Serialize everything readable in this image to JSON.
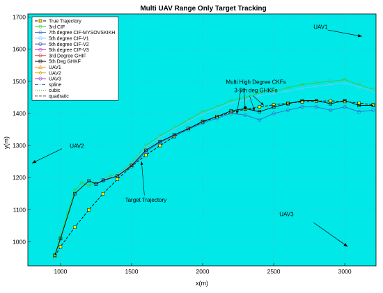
{
  "chart_data": {
    "type": "line",
    "title": "Multi UAV Range Only Target Tracking",
    "xlabel": "x(m)",
    "ylabel": "y(m)",
    "xlim": [
      770,
      3220
    ],
    "ylim": [
      925,
      1710
    ],
    "xticks": [
      1000,
      1500,
      2000,
      2500,
      3000
    ],
    "yticks": [
      1000,
      1100,
      1200,
      1300,
      1400,
      1500,
      1600,
      1700
    ],
    "grid": true,
    "background": "#00e8e8",
    "legend_position": "top-left",
    "legend": [
      {
        "name": "True Trajectory",
        "color": "#000000",
        "marker": "square-yellow",
        "line": "dash"
      },
      {
        "name": "3rd CIF",
        "color": "#33cc33",
        "marker": "circle",
        "line": "solid"
      },
      {
        "name": "7th degree CIF-MYSOVSKIKH",
        "color": "#3366cc",
        "marker": "circle",
        "line": "solid"
      },
      {
        "name": "5th degree CIF-V1",
        "color": "#66ccff",
        "marker": "circle",
        "line": "solid"
      },
      {
        "name": "5th degree CIF-V2",
        "color": "#3333aa",
        "marker": "circle",
        "line": "solid"
      },
      {
        "name": "5th degree CIF-V3",
        "color": "#cc33cc",
        "marker": "circle",
        "line": "solid"
      },
      {
        "name": "3rd Degree GHIF",
        "color": "#cc3333",
        "marker": "circle",
        "line": "solid"
      },
      {
        "name": "5th Deg GHKF",
        "color": "#000000",
        "marker": "square",
        "line": "solid"
      },
      {
        "name": "UAV1",
        "color": "#ff8800",
        "marker": "triangle",
        "line": "solid"
      },
      {
        "name": "UAV2",
        "color": "#ccaa00",
        "marker": "diamond",
        "line": "solid"
      },
      {
        "name": "UAV3",
        "color": "#9933cc",
        "marker": "circle",
        "line": "solid"
      },
      {
        "name": "spline",
        "color": "#0055cc",
        "marker": "none",
        "line": "dashdot"
      },
      {
        "name": "cubic",
        "color": "#008800",
        "marker": "none",
        "line": "dot"
      },
      {
        "name": "quadratic",
        "color": "#663344",
        "marker": "none",
        "line": "dash"
      }
    ],
    "series": [
      {
        "name": "True Trajectory",
        "x": [
          960,
          1000,
          1100,
          1200,
          1300,
          1400,
          1500,
          1600,
          1700,
          1800,
          1900,
          2000,
          2100,
          2200,
          2300,
          2400,
          2500,
          2600,
          2700,
          2800,
          2900,
          3000,
          3100,
          3200
        ],
        "y": [
          955,
          985,
          1045,
          1100,
          1150,
          1195,
          1235,
          1270,
          1300,
          1328,
          1353,
          1373,
          1390,
          1403,
          1413,
          1420,
          1427,
          1432,
          1436,
          1438,
          1439,
          1437,
          1432,
          1427
        ]
      },
      {
        "name": "3rd CIF",
        "x": [
          960,
          1000,
          1050,
          1100,
          1150,
          1200,
          1250,
          1300,
          1350,
          1400,
          1500,
          1600,
          1700,
          1800,
          1900,
          2000,
          2100,
          2200,
          2300,
          2400,
          2500,
          2600,
          2700,
          2800,
          2900,
          3000,
          3100,
          3200
        ],
        "y": [
          960,
          1015,
          1090,
          1160,
          1185,
          1175,
          1185,
          1195,
          1205,
          1210,
          1245,
          1300,
          1330,
          1355,
          1380,
          1405,
          1420,
          1440,
          1450,
          1465,
          1470,
          1480,
          1490,
          1495,
          1500,
          1505,
          1490,
          1475
        ]
      },
      {
        "name": "5th degree CIF-V1",
        "x": [
          1250,
          1300,
          1400,
          1500,
          1600,
          1700,
          1800,
          1900,
          2000,
          2100,
          2200,
          2300,
          2400,
          2500,
          2600,
          2700,
          2800,
          2900,
          3000,
          3100,
          3200
        ],
        "y": [
          1185,
          1195,
          1208,
          1242,
          1295,
          1325,
          1350,
          1375,
          1398,
          1415,
          1432,
          1443,
          1455,
          1462,
          1470,
          1478,
          1485,
          1490,
          1495,
          1482,
          1470
        ]
      },
      {
        "name": "7th degree CIF-MYSOVSKIKH",
        "x": [
          1250,
          1300,
          1400,
          1500,
          1600,
          1700,
          1800,
          1900,
          2000,
          2100,
          2200,
          2300,
          2400,
          2500,
          2600,
          2700,
          2800,
          2900,
          3000,
          3100,
          3200
        ],
        "y": [
          1180,
          1190,
          1205,
          1235,
          1280,
          1310,
          1330,
          1350,
          1370,
          1385,
          1400,
          1395,
          1380,
          1400,
          1410,
          1420,
          1420,
          1410,
          1420,
          1405,
          1410
        ]
      },
      {
        "name": "5th Deg GHKF",
        "x": [
          960,
          1000,
          1100,
          1200,
          1250,
          1300,
          1400,
          1500,
          1600,
          1700,
          1800,
          1900,
          2000,
          2100,
          2200,
          2300,
          2400,
          2500,
          2600,
          2700,
          2800,
          2900,
          3000,
          3100,
          3200
        ],
        "y": [
          958,
          1010,
          1150,
          1190,
          1180,
          1192,
          1205,
          1238,
          1285,
          1312,
          1333,
          1353,
          1375,
          1390,
          1408,
          1415,
          1405,
          1420,
          1430,
          1440,
          1440,
          1430,
          1440,
          1425,
          1425
        ]
      }
    ],
    "arrows": [
      {
        "label": "UAV1",
        "from": [
          2880,
          1660
        ],
        "to": [
          3120,
          1640
        ]
      },
      {
        "label": "UAV2",
        "from": [
          1010,
          1290
        ],
        "to": [
          800,
          1245
        ]
      },
      {
        "label": "UAV3",
        "from": [
          2780,
          1060
        ],
        "to": [
          3020,
          985
        ]
      }
    ],
    "annotations": [
      {
        "text": "Multi High Degree CKFs",
        "at": [
          2375,
          1492
        ]
      },
      {
        "text": "3-5th deg GHKFs",
        "at": [
          2375,
          1466
        ]
      },
      {
        "text": "Target Trajectory",
        "at": [
          1600,
          1125
        ]
      },
      {
        "text": "UAV1",
        "at": [
          2830,
          1663
        ]
      },
      {
        "text": "UAV2",
        "at": [
          1115,
          1293
        ]
      },
      {
        "text": "UAV3",
        "at": [
          2590,
          1080
        ]
      }
    ]
  }
}
